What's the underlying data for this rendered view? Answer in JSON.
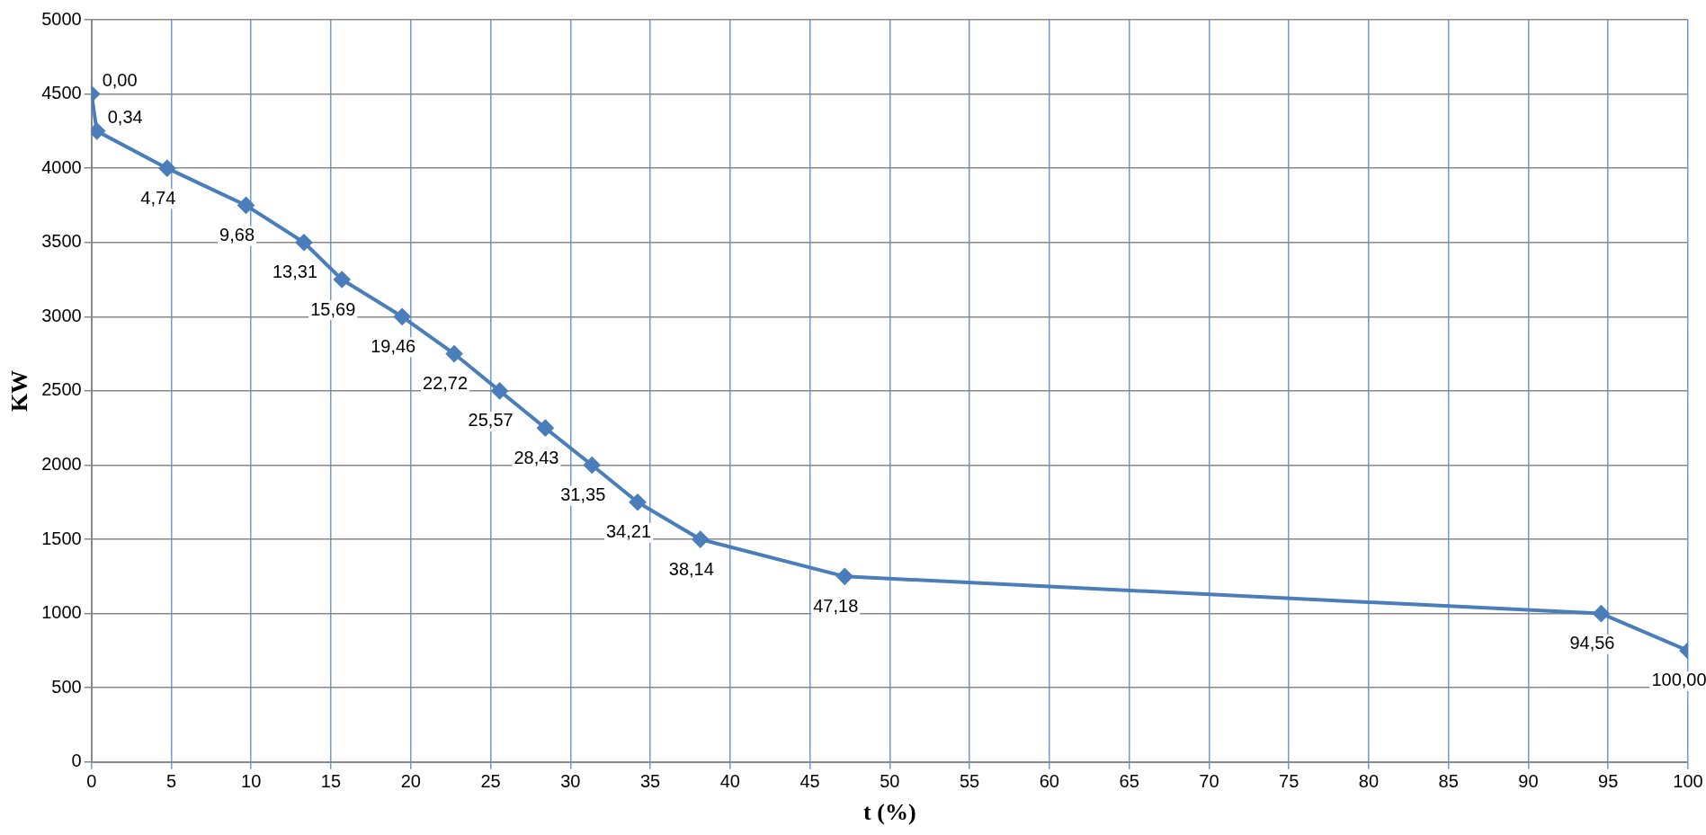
{
  "chart_data": {
    "type": "line",
    "xlabel": "t (%)",
    "ylabel": "KW",
    "x": [
      0,
      0.34,
      4.74,
      9.68,
      13.31,
      15.69,
      19.46,
      22.72,
      25.57,
      28.43,
      31.35,
      34.21,
      38.14,
      47.18,
      94.56,
      100
    ],
    "series": [
      {
        "color": "#4a7ebb",
        "values": [
          4500,
          4250,
          4000,
          3750,
          3500,
          3250,
          3000,
          2750,
          2500,
          2250,
          2000,
          1750,
          1500,
          1250,
          1000,
          750
        ]
      }
    ],
    "annotations": [
      {
        "text": "0,00",
        "x": 0,
        "y": 4500
      },
      {
        "text": "0,34",
        "x": 0.34,
        "y": 4250
      },
      {
        "text": "4,74",
        "x": 4.74,
        "y": 4000
      },
      {
        "text": "9,68",
        "x": 9.68,
        "y": 3750
      },
      {
        "text": "13,31",
        "x": 13.31,
        "y": 3500
      },
      {
        "text": "15,69",
        "x": 15.69,
        "y": 3250
      },
      {
        "text": "19,46",
        "x": 19.46,
        "y": 3000
      },
      {
        "text": "22,72",
        "x": 22.72,
        "y": 2750
      },
      {
        "text": "25,57",
        "x": 25.57,
        "y": 2500
      },
      {
        "text": "28,43",
        "x": 28.43,
        "y": 2250
      },
      {
        "text": "31,35",
        "x": 31.35,
        "y": 2000
      },
      {
        "text": "34,21",
        "x": 34.21,
        "y": 1750
      },
      {
        "text": "38,14",
        "x": 38.14,
        "y": 1500
      },
      {
        "text": "47,18",
        "x": 47.18,
        "y": 1250
      },
      {
        "text": "94,56",
        "x": 94.56,
        "y": 1000
      },
      {
        "text": "100,00",
        "x": 100,
        "y": 750
      }
    ],
    "xlim": [
      0,
      100
    ],
    "xticks": [
      0,
      5,
      10,
      15,
      20,
      25,
      30,
      35,
      40,
      45,
      50,
      55,
      60,
      65,
      70,
      75,
      80,
      85,
      90,
      95,
      100
    ],
    "ylim": [
      0,
      5000
    ],
    "yticks": [
      0,
      500,
      1000,
      1500,
      2000,
      2500,
      3000,
      3500,
      4000,
      4500,
      5000
    ],
    "grid": true,
    "legend": false,
    "marker": "diamond",
    "line_style": "solid"
  }
}
